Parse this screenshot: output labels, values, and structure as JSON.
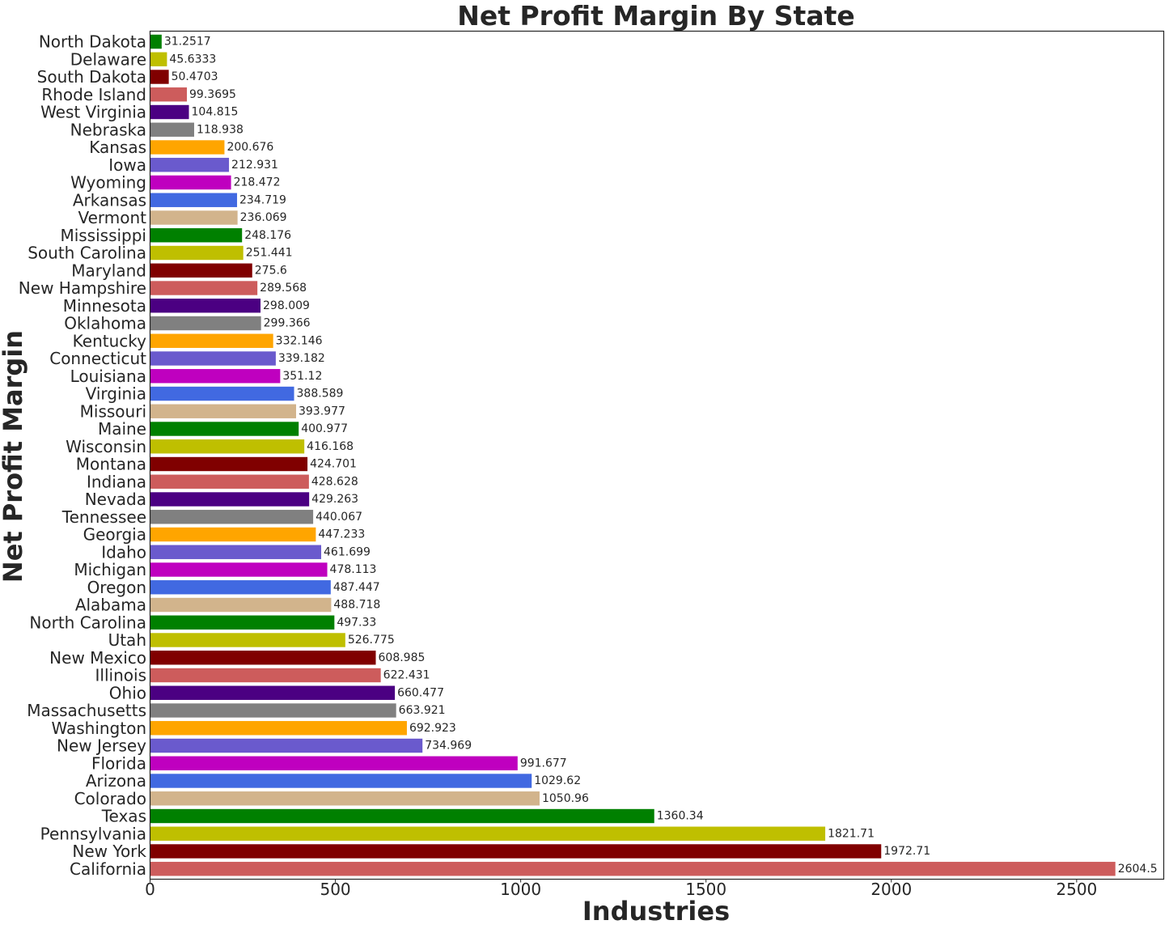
{
  "chart_data": {
    "type": "bar",
    "orientation": "horizontal",
    "title": "Net Profit Margin By State",
    "xlabel": "Industries",
    "ylabel": "Net Profit Margin",
    "xlim": [
      0,
      2735
    ],
    "xticks": [
      0,
      500,
      1000,
      1500,
      2000,
      2500
    ],
    "grid": false,
    "categories": [
      "North Dakota",
      "Delaware",
      "South Dakota",
      "Rhode Island",
      "West Virginia",
      "Nebraska",
      "Kansas",
      "Iowa",
      "Wyoming",
      "Arkansas",
      "Vermont",
      "Mississippi",
      "South Carolina",
      "Maryland",
      "New Hampshire",
      "Minnesota",
      "Oklahoma",
      "Kentucky",
      "Connecticut",
      "Louisiana",
      "Virginia",
      "Missouri",
      "Maine",
      "Wisconsin",
      "Montana",
      "Indiana",
      "Nevada",
      "Tennessee",
      "Georgia",
      "Idaho",
      "Michigan",
      "Oregon",
      "Alabama",
      "North Carolina",
      "Utah",
      "New Mexico",
      "Illinois",
      "Ohio",
      "Massachusetts",
      "Washington",
      "New Jersey",
      "Florida",
      "Arizona",
      "Colorado",
      "Texas",
      "Pennsylvania",
      "New York",
      "California"
    ],
    "values": [
      31.2517,
      45.6333,
      50.4703,
      99.3695,
      104.815,
      118.938,
      200.676,
      212.931,
      218.472,
      234.719,
      236.069,
      248.176,
      251.441,
      275.6,
      289.568,
      298.009,
      299.366,
      332.146,
      339.182,
      351.12,
      388.589,
      393.977,
      400.977,
      416.168,
      424.701,
      428.628,
      429.263,
      440.067,
      447.233,
      461.699,
      478.113,
      487.447,
      488.718,
      497.33,
      526.775,
      608.985,
      622.431,
      660.477,
      663.921,
      692.923,
      734.969,
      991.677,
      1029.62,
      1050.96,
      1360.34,
      1821.71,
      1972.71,
      2604.5
    ],
    "value_labels": [
      "31.2517",
      "45.6333",
      "50.4703",
      "99.3695",
      "104.815",
      "118.938",
      "200.676",
      "212.931",
      "218.472",
      "234.719",
      "236.069",
      "248.176",
      "251.441",
      "275.6",
      "289.568",
      "298.009",
      "299.366",
      "332.146",
      "339.182",
      "351.12",
      "388.589",
      "393.977",
      "400.977",
      "416.168",
      "424.701",
      "428.628",
      "429.263",
      "440.067",
      "447.233",
      "461.699",
      "478.113",
      "487.447",
      "488.718",
      "497.33",
      "526.775",
      "608.985",
      "622.431",
      "660.477",
      "663.921",
      "692.923",
      "734.969",
      "991.677",
      "1029.62",
      "1050.96",
      "1360.34",
      "1821.71",
      "1972.71",
      "2604.5"
    ],
    "colors": [
      "#008000",
      "#bfbf00",
      "#800000",
      "#cd5c5c",
      "#4b0082",
      "#808080",
      "#ffa500",
      "#6a5acd",
      "#bf00bf",
      "#4169e1",
      "#d2b48c"
    ]
  }
}
